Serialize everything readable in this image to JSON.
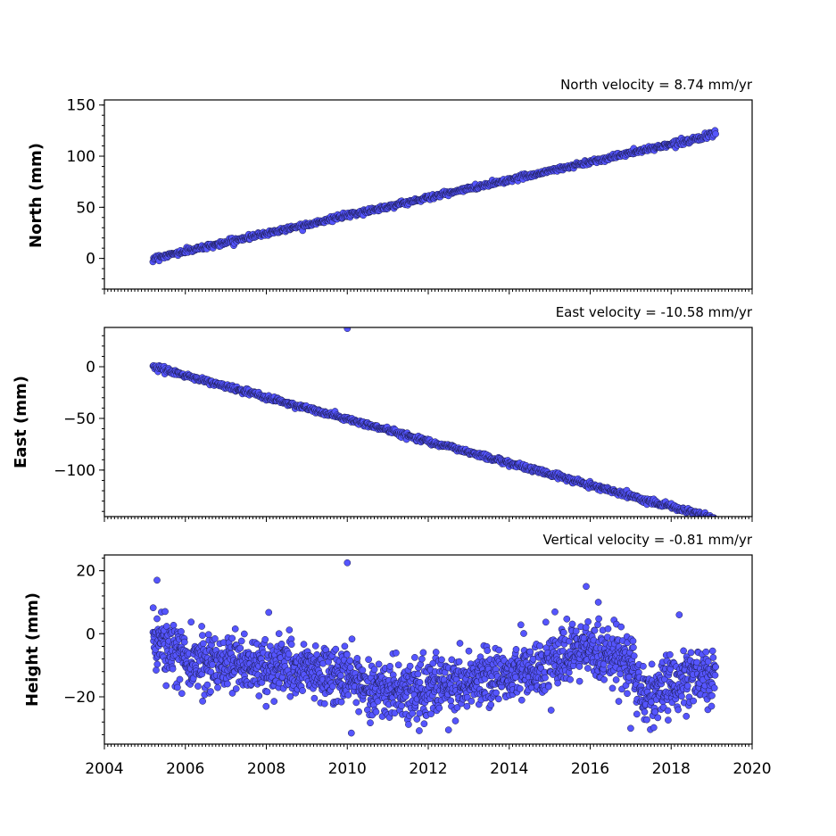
{
  "chart_data": [
    {
      "type": "scatter",
      "panel": "north",
      "annotation": "North velocity = 8.74 mm/yr",
      "ylabel": "North (mm)",
      "xlabel": "",
      "xlim": [
        2004,
        2020
      ],
      "ylim": [
        -30,
        155
      ],
      "yticks": [
        150,
        100,
        50,
        0
      ],
      "ytick_labels": [
        "150",
        "100",
        "50",
        "0"
      ],
      "color": "#5555ff",
      "series": [
        {
          "x_range": [
            2005.2,
            2019.1
          ],
          "trend": {
            "slope": 8.74,
            "intercept": 0
          },
          "noise_sd": 1.2,
          "points": 900
        }
      ]
    },
    {
      "type": "scatter",
      "panel": "east",
      "annotation": "East velocity = -10.58 mm/yr",
      "ylabel": "East (mm)",
      "xlabel": "",
      "xlim": [
        2004,
        2020
      ],
      "ylim": [
        -145,
        38
      ],
      "yticks": [
        0,
        -50,
        -100
      ],
      "ytick_labels": [
        "0",
        "−50",
        "−100"
      ],
      "color": "#5555ff",
      "series": [
        {
          "x_range": [
            2005.2,
            2019.1
          ],
          "trend": {
            "slope": -10.58,
            "intercept": 0
          },
          "noise_sd": 1.3,
          "points": 900,
          "outliers": [
            {
              "x": 2010.0,
              "y": 37
            }
          ]
        }
      ]
    },
    {
      "type": "scatter",
      "panel": "height",
      "annotation": "Vertical velocity = -0.81 mm/yr",
      "ylabel": "Height (mm)",
      "xlabel": "",
      "xlim": [
        2004,
        2020
      ],
      "ylim": [
        -35,
        25
      ],
      "yticks": [
        20,
        0,
        -20
      ],
      "ytick_labels": [
        "20",
        "0",
        "−20"
      ],
      "color": "#5555ff",
      "series": [
        {
          "x_range": [
            2005.2,
            2019.1
          ],
          "trend_points": [
            {
              "x": 2005.2,
              "y": -2
            },
            {
              "x": 2006.0,
              "y": -8
            },
            {
              "x": 2008.0,
              "y": -10
            },
            {
              "x": 2010.0,
              "y": -14
            },
            {
              "x": 2011.2,
              "y": -19
            },
            {
              "x": 2013.0,
              "y": -15
            },
            {
              "x": 2015.0,
              "y": -10
            },
            {
              "x": 2016.0,
              "y": -5
            },
            {
              "x": 2017.0,
              "y": -9
            },
            {
              "x": 2017.3,
              "y": -20
            },
            {
              "x": 2018.5,
              "y": -13
            },
            {
              "x": 2019.1,
              "y": -14
            }
          ],
          "noise_sd": 4.5,
          "points": 1800,
          "outliers": [
            {
              "x": 2005.3,
              "y": 17
            },
            {
              "x": 2010.0,
              "y": 22.5
            },
            {
              "x": 2015.9,
              "y": 15
            },
            {
              "x": 2016.2,
              "y": 10
            },
            {
              "x": 2018.2,
              "y": 6
            },
            {
              "x": 2010.1,
              "y": -31.5
            },
            {
              "x": 2012.5,
              "y": -30.5
            },
            {
              "x": 2017.0,
              "y": -30
            }
          ]
        }
      ]
    }
  ],
  "x_axis": {
    "ticks": [
      2004,
      2006,
      2008,
      2010,
      2012,
      2014,
      2016,
      2018,
      2020
    ],
    "tick_labels": [
      "2004",
      "2006",
      "2008",
      "2010",
      "2012",
      "2014",
      "2016",
      "2018",
      "2020"
    ],
    "minor_per_year": 12
  }
}
